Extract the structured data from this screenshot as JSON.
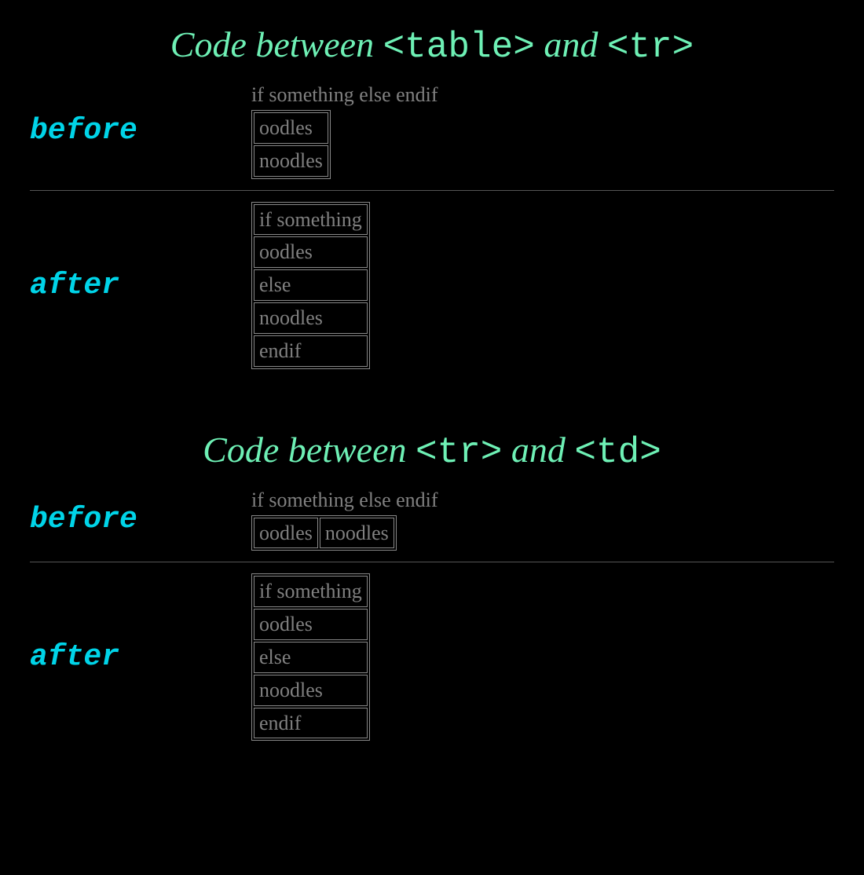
{
  "colors": {
    "background": "#000000",
    "heading_text": "#6ef0b5",
    "label_text": "#00d4e8",
    "body_text": "#808080",
    "table_border": "#888888",
    "separator": "#555555"
  },
  "typography": {
    "heading_fontsize": 46,
    "heading_fontstyle": "italic",
    "heading_fontfamily": "Georgia, serif",
    "heading_mono_fontfamily": "Courier New, monospace",
    "label_fontsize": 38,
    "label_fontfamily": "Courier New, monospace",
    "label_fontweight": "bold",
    "label_fontstyle": "italic",
    "cell_fontsize": 26,
    "cell_fontfamily": "Georgia, serif"
  },
  "section1": {
    "heading_prefix": "Code between ",
    "heading_tag1": "<table>",
    "heading_mid": " and ",
    "heading_tag2": "<tr>",
    "before": {
      "label": "before",
      "overflow_text": "if something else endif",
      "table": {
        "layout": "vertical",
        "rows": [
          [
            "oodles"
          ],
          [
            "noodles"
          ]
        ]
      }
    },
    "after": {
      "label": "after",
      "table": {
        "layout": "vertical",
        "rows": [
          [
            "if something"
          ],
          [
            "oodles"
          ],
          [
            "else"
          ],
          [
            "noodles"
          ],
          [
            "endif"
          ]
        ]
      }
    }
  },
  "section2": {
    "heading_prefix": "Code between ",
    "heading_tag1": "<tr>",
    "heading_mid": " and ",
    "heading_tag2": "<td>",
    "before": {
      "label": "before",
      "overflow_text": "if something else endif",
      "table": {
        "layout": "horizontal",
        "rows": [
          [
            "oodles",
            "noodles"
          ]
        ]
      }
    },
    "after": {
      "label": "after",
      "table": {
        "layout": "vertical",
        "rows": [
          [
            "if something"
          ],
          [
            "oodles"
          ],
          [
            "else"
          ],
          [
            "noodles"
          ],
          [
            "endif"
          ]
        ]
      }
    }
  }
}
